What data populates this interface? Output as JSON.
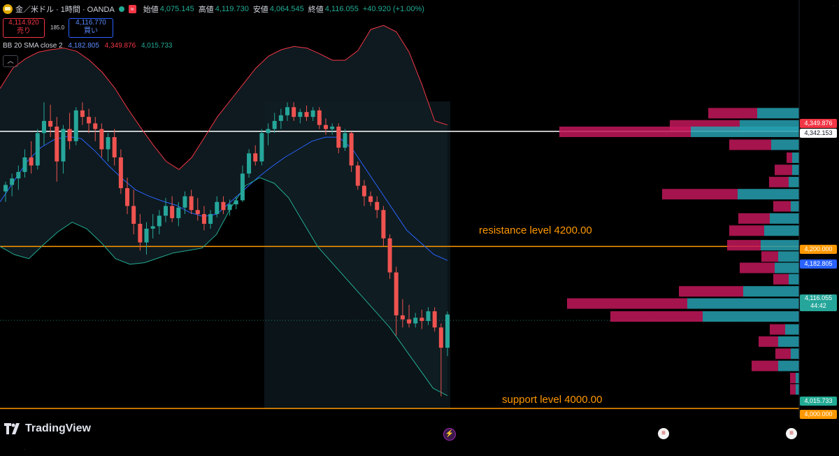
{
  "header": {
    "symbol": "金／米ドル · 1時間 · OANDA",
    "badge": "≈",
    "open_label": "始値",
    "open": "4,075.145",
    "high_label": "高値",
    "high": "4,119.730",
    "low_label": "安値",
    "low": "4,064.545",
    "close_label": "終値",
    "close": "4,116.055",
    "change": "+40.920 (+1.00%)"
  },
  "trade": {
    "sell_price": "4,114.920",
    "sell_label": "売り",
    "spread": "185.0",
    "buy_price": "4,116.770",
    "buy_label": "買い"
  },
  "indicator": {
    "name": "BB 20 SMA close 2",
    "basis": "4,182.805",
    "upper": "4,349.876",
    "lower": "4,015.733",
    "collapse_icon": "chevron-up-icon"
  },
  "price_labels": {
    "upper": "4,349.876",
    "hline": "4,342.153",
    "resistance": "4,200.000",
    "basis": "4,182.805",
    "last": "4,116.055",
    "countdown": "44:42",
    "lower": "4,015.733",
    "support": "4,000.000"
  },
  "annotations": {
    "resistance_text": "resistance level      4200.00",
    "support_text": "support level      4000.00"
  },
  "branding": {
    "logo_text": "TradingView"
  },
  "colors": {
    "up": "#26a69a",
    "down": "#ef5350",
    "upper_band": "#f23645",
    "basis": "#2962ff",
    "lower_band": "#22ab94",
    "resistance": "#ff9800",
    "support": "#ff9800",
    "hline": "#ffffff",
    "vp_up": "#26a0b0",
    "vp_down": "#c2185b"
  },
  "events": [
    {
      "icon": "lightning-icon",
      "color": "#9c27b0"
    },
    {
      "icon": "us-flag-icon",
      "color": "#f23645"
    },
    {
      "icon": "us-flag-icon",
      "color": "#f23645"
    }
  ],
  "chart_data": {
    "type": "candlestick",
    "ylim": [
      3975,
      4500
    ],
    "candles": [
      {
        "o": 4268,
        "h": 4280,
        "l": 4255,
        "c": 4276
      },
      {
        "o": 4276,
        "h": 4290,
        "l": 4262,
        "c": 4284
      },
      {
        "o": 4284,
        "h": 4300,
        "l": 4270,
        "c": 4292
      },
      {
        "o": 4292,
        "h": 4320,
        "l": 4285,
        "c": 4310
      },
      {
        "o": 4310,
        "h": 4330,
        "l": 4290,
        "c": 4300
      },
      {
        "o": 4300,
        "h": 4345,
        "l": 4295,
        "c": 4340
      },
      {
        "o": 4340,
        "h": 4378,
        "l": 4325,
        "c": 4355
      },
      {
        "o": 4355,
        "h": 4375,
        "l": 4335,
        "c": 4348
      },
      {
        "o": 4348,
        "h": 4360,
        "l": 4280,
        "c": 4305
      },
      {
        "o": 4305,
        "h": 4350,
        "l": 4290,
        "c": 4345
      },
      {
        "o": 4345,
        "h": 4365,
        "l": 4320,
        "c": 4330
      },
      {
        "o": 4330,
        "h": 4372,
        "l": 4325,
        "c": 4368
      },
      {
        "o": 4368,
        "h": 4378,
        "l": 4350,
        "c": 4360
      },
      {
        "o": 4360,
        "h": 4370,
        "l": 4340,
        "c": 4352
      },
      {
        "o": 4352,
        "h": 4360,
        "l": 4330,
        "c": 4345
      },
      {
        "o": 4345,
        "h": 4352,
        "l": 4310,
        "c": 4320
      },
      {
        "o": 4320,
        "h": 4340,
        "l": 4305,
        "c": 4335
      },
      {
        "o": 4335,
        "h": 4345,
        "l": 4300,
        "c": 4310
      },
      {
        "o": 4310,
        "h": 4320,
        "l": 4265,
        "c": 4272
      },
      {
        "o": 4272,
        "h": 4285,
        "l": 4240,
        "c": 4250
      },
      {
        "o": 4250,
        "h": 4270,
        "l": 4215,
        "c": 4228
      },
      {
        "o": 4228,
        "h": 4240,
        "l": 4195,
        "c": 4205
      },
      {
        "o": 4205,
        "h": 4230,
        "l": 4190,
        "c": 4222
      },
      {
        "o": 4222,
        "h": 4240,
        "l": 4210,
        "c": 4225
      },
      {
        "o": 4225,
        "h": 4245,
        "l": 4215,
        "c": 4238
      },
      {
        "o": 4238,
        "h": 4260,
        "l": 4230,
        "c": 4250
      },
      {
        "o": 4250,
        "h": 4262,
        "l": 4230,
        "c": 4235
      },
      {
        "o": 4235,
        "h": 4255,
        "l": 4225,
        "c": 4248
      },
      {
        "o": 4248,
        "h": 4268,
        "l": 4240,
        "c": 4262
      },
      {
        "o": 4262,
        "h": 4270,
        "l": 4240,
        "c": 4245
      },
      {
        "o": 4245,
        "h": 4260,
        "l": 4232,
        "c": 4240
      },
      {
        "o": 4240,
        "h": 4250,
        "l": 4220,
        "c": 4228
      },
      {
        "o": 4228,
        "h": 4245,
        "l": 4222,
        "c": 4240
      },
      {
        "o": 4240,
        "h": 4262,
        "l": 4236,
        "c": 4255
      },
      {
        "o": 4255,
        "h": 4262,
        "l": 4240,
        "c": 4245
      },
      {
        "o": 4245,
        "h": 4258,
        "l": 4238,
        "c": 4252
      },
      {
        "o": 4252,
        "h": 4262,
        "l": 4246,
        "c": 4257
      },
      {
        "o": 4257,
        "h": 4300,
        "l": 4255,
        "c": 4290
      },
      {
        "o": 4290,
        "h": 4320,
        "l": 4285,
        "c": 4315
      },
      {
        "o": 4315,
        "h": 4325,
        "l": 4300,
        "c": 4305
      },
      {
        "o": 4305,
        "h": 4345,
        "l": 4300,
        "c": 4340
      },
      {
        "o": 4340,
        "h": 4352,
        "l": 4325,
        "c": 4345
      },
      {
        "o": 4345,
        "h": 4365,
        "l": 4340,
        "c": 4355
      },
      {
        "o": 4355,
        "h": 4370,
        "l": 4345,
        "c": 4362
      },
      {
        "o": 4362,
        "h": 4378,
        "l": 4355,
        "c": 4372
      },
      {
        "o": 4372,
        "h": 4378,
        "l": 4355,
        "c": 4360
      },
      {
        "o": 4360,
        "h": 4370,
        "l": 4352,
        "c": 4366
      },
      {
        "o": 4366,
        "h": 4374,
        "l": 4355,
        "c": 4360
      },
      {
        "o": 4360,
        "h": 4372,
        "l": 4355,
        "c": 4368
      },
      {
        "o": 4368,
        "h": 4372,
        "l": 4345,
        "c": 4350
      },
      {
        "o": 4350,
        "h": 4358,
        "l": 4338,
        "c": 4345
      },
      {
        "o": 4345,
        "h": 4352,
        "l": 4338,
        "c": 4348
      },
      {
        "o": 4348,
        "h": 4352,
        "l": 4315,
        "c": 4322
      },
      {
        "o": 4322,
        "h": 4345,
        "l": 4318,
        "c": 4340
      },
      {
        "o": 4340,
        "h": 4342,
        "l": 4292,
        "c": 4300
      },
      {
        "o": 4300,
        "h": 4305,
        "l": 4270,
        "c": 4275
      },
      {
        "o": 4275,
        "h": 4282,
        "l": 4250,
        "c": 4262
      },
      {
        "o": 4262,
        "h": 4268,
        "l": 4250,
        "c": 4255
      },
      {
        "o": 4255,
        "h": 4262,
        "l": 4235,
        "c": 4245
      },
      {
        "o": 4245,
        "h": 4250,
        "l": 4200,
        "c": 4210
      },
      {
        "o": 4210,
        "h": 4215,
        "l": 4160,
        "c": 4168
      },
      {
        "o": 4168,
        "h": 4175,
        "l": 4090,
        "c": 4115
      },
      {
        "o": 4115,
        "h": 4135,
        "l": 4100,
        "c": 4110
      },
      {
        "o": 4110,
        "h": 4128,
        "l": 4100,
        "c": 4105
      },
      {
        "o": 4105,
        "h": 4118,
        "l": 4100,
        "c": 4112
      },
      {
        "o": 4112,
        "h": 4122,
        "l": 4098,
        "c": 4108
      },
      {
        "o": 4108,
        "h": 4125,
        "l": 4103,
        "c": 4120
      },
      {
        "o": 4120,
        "h": 4125,
        "l": 4095,
        "c": 4100
      },
      {
        "o": 4100,
        "h": 4105,
        "l": 4015,
        "c": 4075
      },
      {
        "o": 4075,
        "h": 4119.73,
        "l": 4064.545,
        "c": 4116.055
      }
    ],
    "upper_band": [
      4395,
      4420,
      4432,
      4440,
      4443,
      4445,
      4441,
      4430,
      4415,
      4395,
      4370,
      4347,
      4325,
      4305,
      4295,
      4310,
      4335,
      4360,
      4380,
      4400,
      4420,
      4435,
      4443,
      4447,
      4445,
      4438,
      4430,
      4430,
      4442,
      4468,
      4473,
      4465,
      4440,
      4400,
      4355,
      4350
    ],
    "basis": [
      4255,
      4280,
      4305,
      4322,
      4332,
      4336,
      4333,
      4318,
      4300,
      4284,
      4270,
      4262,
      4256,
      4251,
      4242,
      4237,
      4240,
      4255,
      4270,
      4285,
      4298,
      4310,
      4320,
      4330,
      4335,
      4335,
      4320,
      4295,
      4270,
      4245,
      4220,
      4205,
      4190,
      4182.805
    ],
    "lower_band": [
      4200,
      4190,
      4185,
      4202,
      4218,
      4230,
      4222,
      4205,
      4185,
      4178,
      4180,
      4186,
      4192,
      4195,
      4198,
      4215,
      4248,
      4275,
      4285,
      4278,
      4260,
      4230,
      4200,
      4180,
      4160,
      4140,
      4120,
      4100,
      4075,
      4050,
      4025,
      4015.733
    ],
    "hline": 4342.153,
    "resistance": 4200.0,
    "support": 4000.0,
    "volume_profile": [
      {
        "price": 4365,
        "up": 60,
        "down": 70
      },
      {
        "price": 4350,
        "up": 85,
        "down": 100
      },
      {
        "price": 4342,
        "up": 155,
        "down": 188
      },
      {
        "price": 4326,
        "up": 40,
        "down": 60
      },
      {
        "price": 4310,
        "up": 10,
        "down": 8
      },
      {
        "price": 4295,
        "up": 10,
        "down": 25
      },
      {
        "price": 4280,
        "up": 15,
        "down": 28
      },
      {
        "price": 4265,
        "up": 88,
        "down": 108
      },
      {
        "price": 4250,
        "up": 12,
        "down": 25
      },
      {
        "price": 4235,
        "up": 42,
        "down": 45
      },
      {
        "price": 4220,
        "up": 50,
        "down": 50
      },
      {
        "price": 4202,
        "up": 55,
        "down": 48
      },
      {
        "price": 4188,
        "up": 30,
        "down": 24
      },
      {
        "price": 4174,
        "up": 35,
        "down": 50
      },
      {
        "price": 4160,
        "up": 15,
        "down": 22
      },
      {
        "price": 4145,
        "up": 80,
        "down": 92
      },
      {
        "price": 4130,
        "up": 160,
        "down": 172
      },
      {
        "price": 4114,
        "up": 138,
        "down": 132
      },
      {
        "price": 4098,
        "up": 20,
        "down": 22
      },
      {
        "price": 4083,
        "up": 30,
        "down": 28
      },
      {
        "price": 4068,
        "up": 12,
        "down": 22
      },
      {
        "price": 4053,
        "up": 30,
        "down": 38
      },
      {
        "price": 4038,
        "up": 5,
        "down": 8
      },
      {
        "price": 4024,
        "up": 5,
        "down": 8
      }
    ]
  }
}
